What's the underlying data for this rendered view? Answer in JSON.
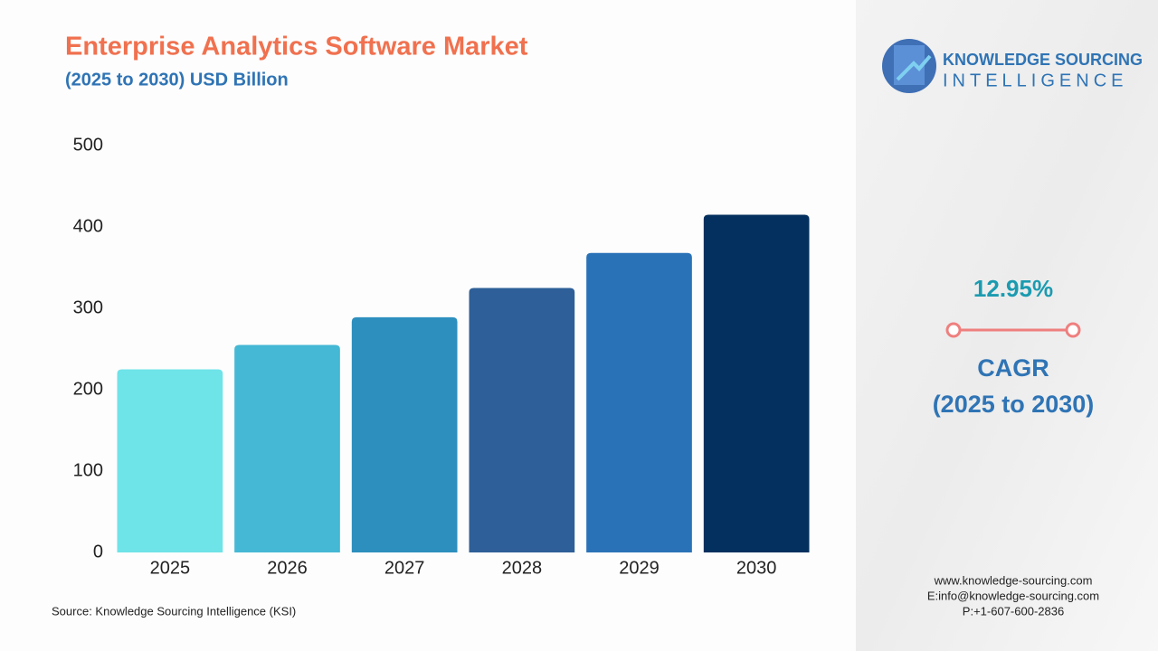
{
  "chart_data": {
    "type": "bar",
    "title": "Enterprise Analytics Software Market",
    "subtitle": "(2025 to 2030) USD Billion",
    "categories": [
      "2025",
      "2026",
      "2027",
      "2028",
      "2029",
      "2030"
    ],
    "values": [
      225,
      255,
      289,
      325,
      368,
      415
    ],
    "colors": [
      "#6ee3e8",
      "#44b8d4",
      "#2d8fbe",
      "#2e5f98",
      "#2a72b7",
      "#04305f"
    ],
    "ylim": [
      0,
      500
    ],
    "yticks": [
      0,
      100,
      200,
      300,
      400,
      500
    ],
    "grid": false
  },
  "source": "Source: Knowledge Sourcing Intelligence (KSI)",
  "brand": {
    "line1": "KNOWLEDGE SOURCING",
    "line2": "INTELLIGENCE"
  },
  "cagr": {
    "value": "12.95%",
    "label": "CAGR",
    "period": "(2025 to 2030)"
  },
  "contact": [
    "www.knowledge-sourcing.com",
    "E:info@knowledge-sourcing.com",
    "P:+1-607-600-2836"
  ]
}
